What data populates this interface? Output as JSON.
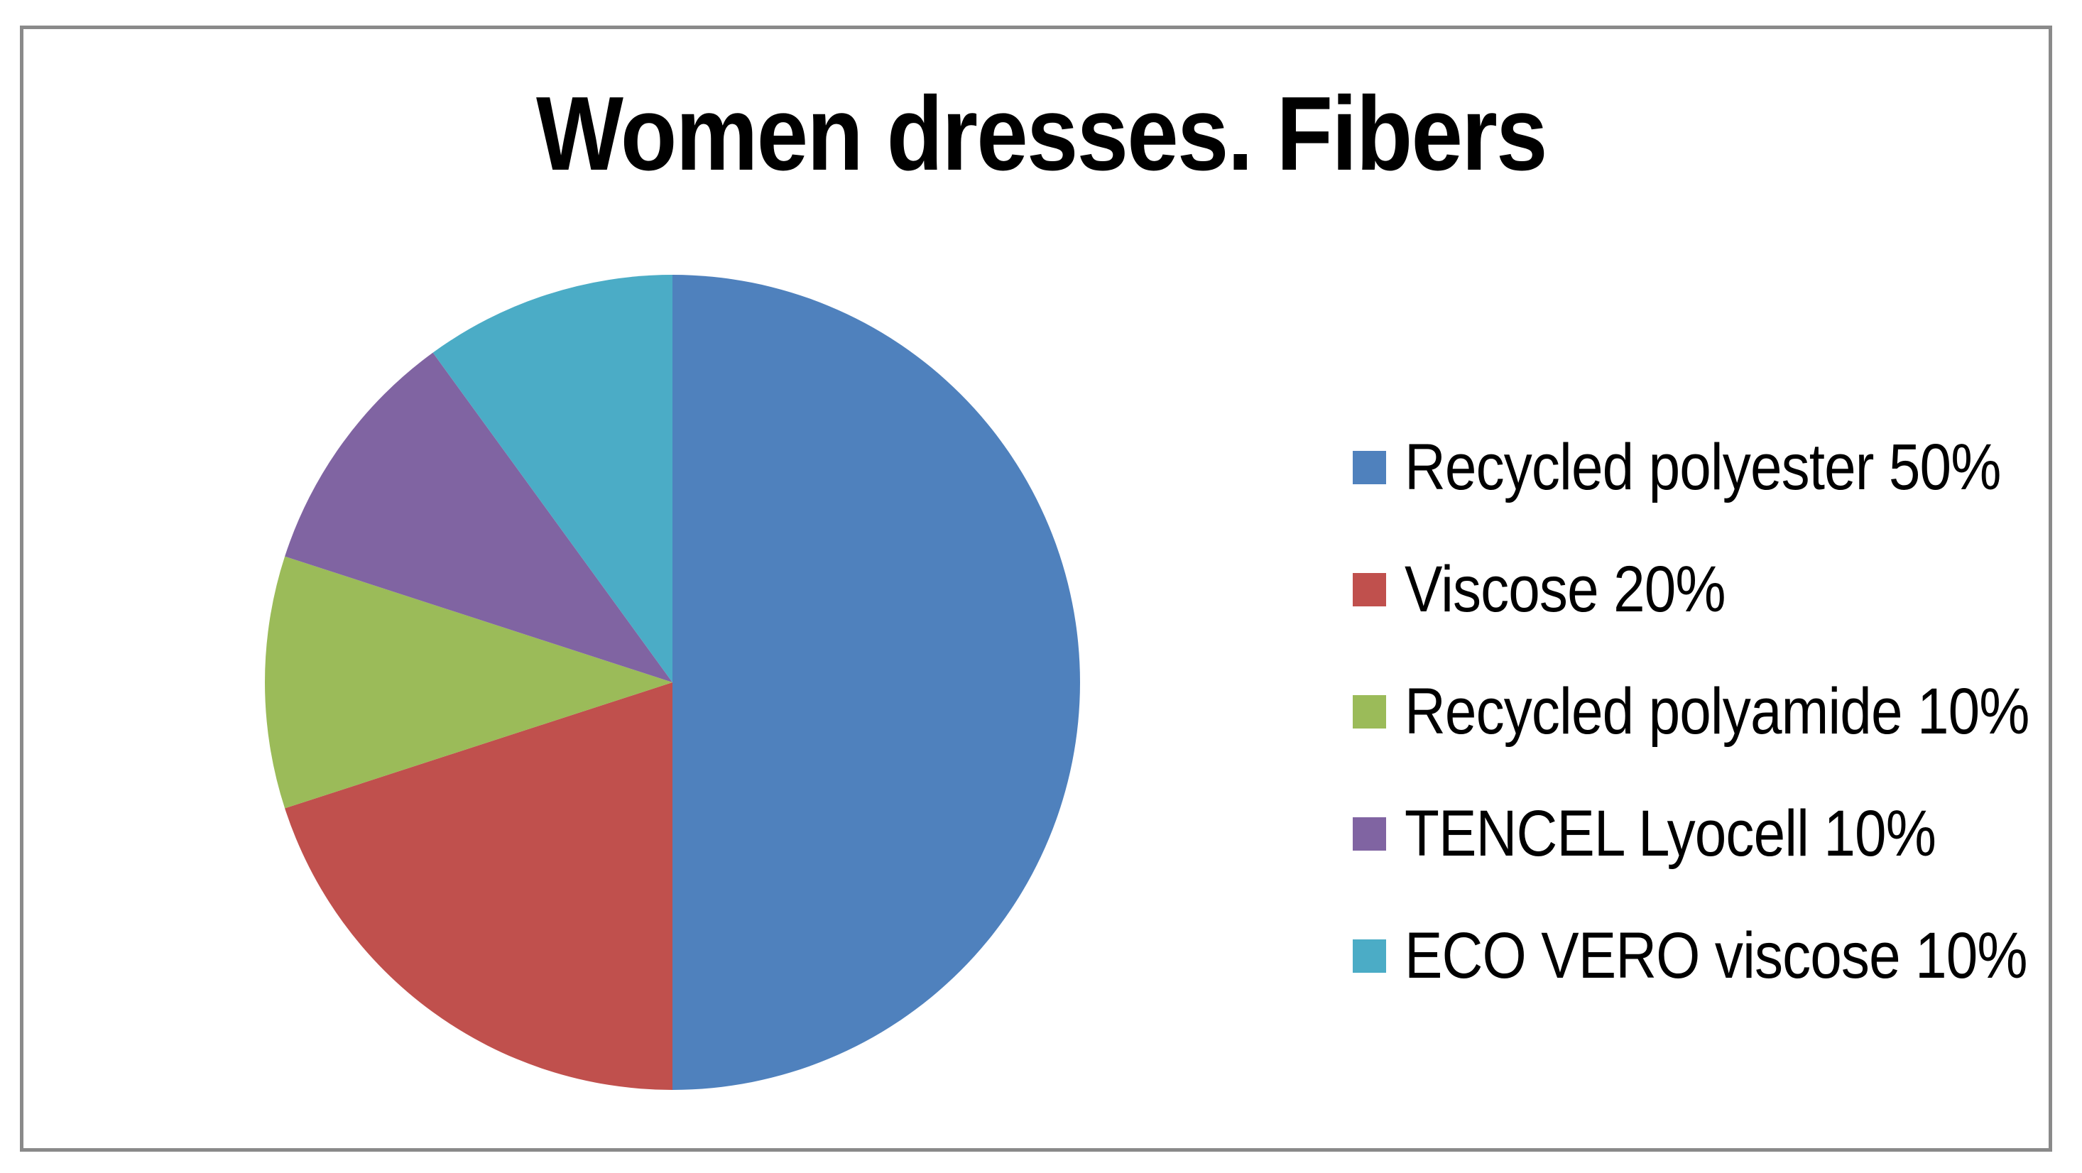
{
  "chart_data": {
    "type": "pie",
    "title": "Women dresses. Fibers",
    "legend_position": "right",
    "start_angle_deg": 0,
    "direction": "clockwise",
    "units": "%",
    "categories": [
      "Recycled polyester",
      "Viscose",
      "Recycled polyamide",
      "TENCEL Lyocell",
      "ECO VERO viscose"
    ],
    "values": [
      50,
      20,
      10,
      10,
      10
    ],
    "series": [
      {
        "name": "Recycled polyester",
        "value": 50,
        "label": "Recycled polyester 50%",
        "color": "#4F81BD"
      },
      {
        "name": "Viscose",
        "value": 20,
        "label": "Viscose 20%",
        "color": "#C0504D"
      },
      {
        "name": "Recycled polyamide",
        "value": 10,
        "label": "Recycled polyamide 10%",
        "color": "#9BBB59"
      },
      {
        "name": "TENCEL Lyocell",
        "value": 10,
        "label": "TENCEL Lyocell 10%",
        "color": "#8064A2"
      },
      {
        "name": "ECO VERO viscose",
        "value": 10,
        "label": "ECO VERO viscose 10%",
        "color": "#4BACC6"
      }
    ]
  },
  "frame": {
    "border_color": "#8A8A8A",
    "background": "#FFFFFF"
  }
}
